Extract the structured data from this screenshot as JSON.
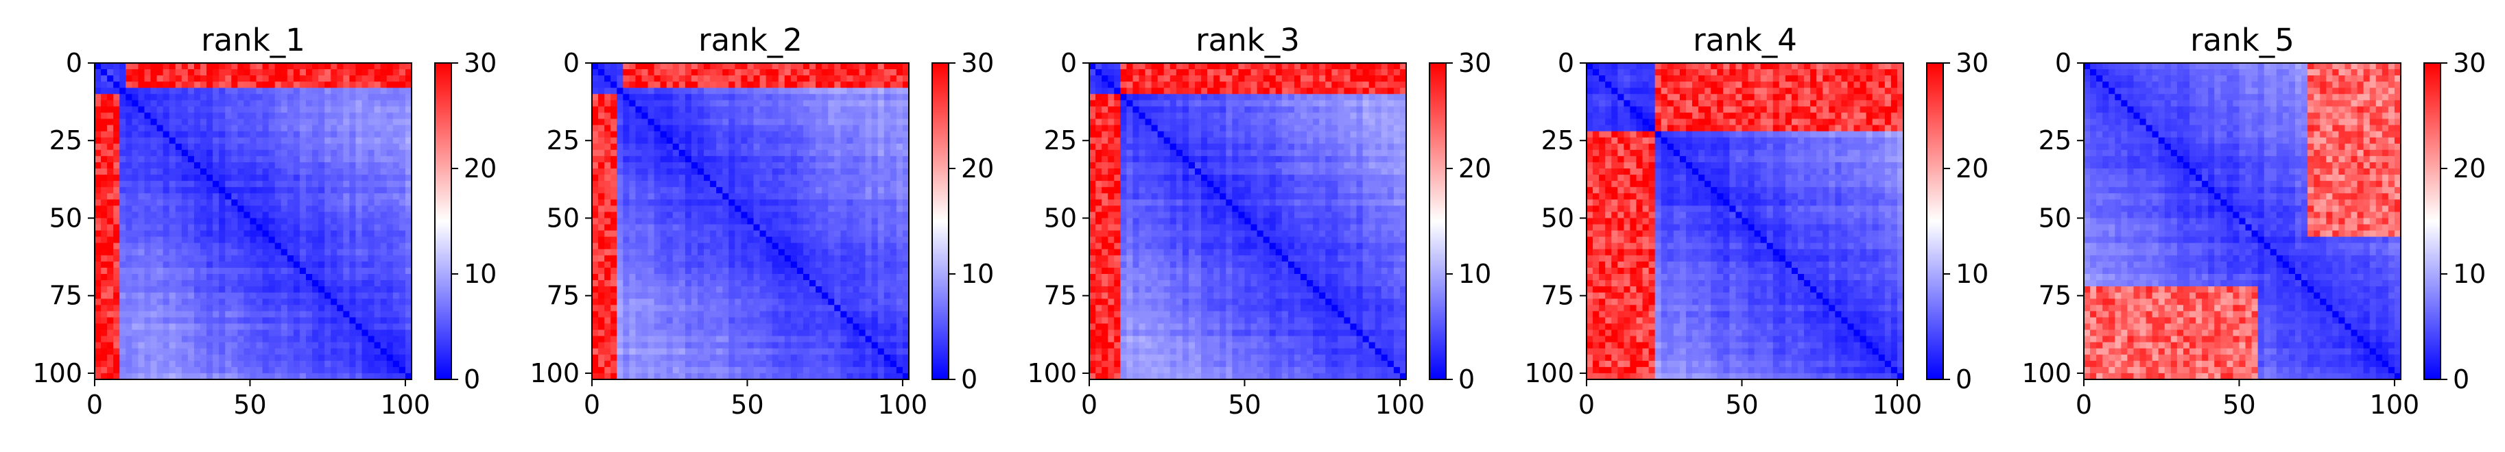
{
  "chart_data": [
    {
      "type": "heatmap",
      "title": "rank_1",
      "matrix_size": 102,
      "xlim": [
        0,
        102
      ],
      "ylim": [
        102,
        0
      ],
      "x_ticks": [
        0,
        50,
        100
      ],
      "y_ticks": [
        0,
        25,
        50,
        75,
        100
      ],
      "colorbar": {
        "min": 0,
        "max": 30,
        "ticks": [
          0,
          10,
          20,
          30
        ],
        "colormap": "bwr"
      },
      "high_blocks": [
        {
          "rows": [
            0,
            8
          ],
          "cols": [
            10,
            102
          ],
          "level": 28
        }
      ]
    },
    {
      "type": "heatmap",
      "title": "rank_2",
      "matrix_size": 102,
      "xlim": [
        0,
        102
      ],
      "ylim": [
        102,
        0
      ],
      "x_ticks": [
        0,
        50,
        100
      ],
      "y_ticks": [
        0,
        25,
        50,
        75,
        100
      ],
      "colorbar": {
        "min": 0,
        "max": 30,
        "ticks": [
          0,
          10,
          20,
          30
        ],
        "colormap": "bwr"
      },
      "high_blocks": [
        {
          "rows": [
            0,
            8
          ],
          "cols": [
            10,
            102
          ],
          "level": 28
        }
      ]
    },
    {
      "type": "heatmap",
      "title": "rank_3",
      "matrix_size": 102,
      "xlim": [
        0,
        102
      ],
      "ylim": [
        102,
        0
      ],
      "x_ticks": [
        0,
        50,
        100
      ],
      "y_ticks": [
        0,
        25,
        50,
        75,
        100
      ],
      "colorbar": {
        "min": 0,
        "max": 30,
        "ticks": [
          0,
          10,
          20,
          30
        ],
        "colormap": "bwr"
      },
      "high_blocks": [
        {
          "rows": [
            0,
            10
          ],
          "cols": [
            10,
            102
          ],
          "level": 28
        }
      ]
    },
    {
      "type": "heatmap",
      "title": "rank_4",
      "matrix_size": 102,
      "xlim": [
        0,
        102
      ],
      "ylim": [
        102,
        0
      ],
      "x_ticks": [
        0,
        50,
        100
      ],
      "y_ticks": [
        0,
        25,
        50,
        75,
        100
      ],
      "colorbar": {
        "min": 0,
        "max": 30,
        "ticks": [
          0,
          10,
          20,
          30
        ],
        "colormap": "bwr"
      },
      "high_blocks": [
        {
          "rows": [
            0,
            22
          ],
          "cols": [
            22,
            102
          ],
          "level": 27
        }
      ]
    },
    {
      "type": "heatmap",
      "title": "rank_5",
      "matrix_size": 102,
      "xlim": [
        0,
        102
      ],
      "ylim": [
        102,
        0
      ],
      "x_ticks": [
        0,
        50,
        100
      ],
      "y_ticks": [
        0,
        25,
        50,
        75,
        100
      ],
      "colorbar": {
        "min": 0,
        "max": 30,
        "ticks": [
          0,
          10,
          20,
          30
        ],
        "colormap": "bwr"
      },
      "high_blocks": [
        {
          "rows": [
            0,
            55
          ],
          "cols": [
            72,
            102
          ],
          "level": 24
        }
      ]
    }
  ]
}
